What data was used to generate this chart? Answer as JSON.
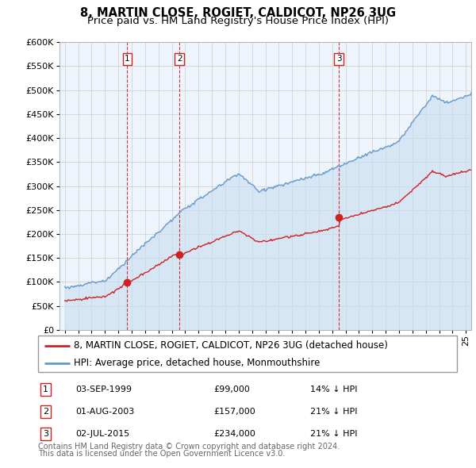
{
  "title": "8, MARTIN CLOSE, ROGIET, CALDICOT, NP26 3UG",
  "subtitle": "Price paid vs. HM Land Registry's House Price Index (HPI)",
  "legend_line1": "8, MARTIN CLOSE, ROGIET, CALDICOT, NP26 3UG (detached house)",
  "legend_line2": "HPI: Average price, detached house, Monmouthshire",
  "footer1": "Contains HM Land Registry data © Crown copyright and database right 2024.",
  "footer2": "This data is licensed under the Open Government Licence v3.0.",
  "purchases": [
    {
      "num": 1,
      "date": "03-SEP-1999",
      "price": 99000,
      "pct": "14%",
      "dir": "↓"
    },
    {
      "num": 2,
      "date": "01-AUG-2003",
      "price": 157000,
      "pct": "21%",
      "dir": "↓"
    },
    {
      "num": 3,
      "date": "02-JUL-2015",
      "price": 234000,
      "pct": "21%",
      "dir": "↓"
    }
  ],
  "purchase_dates_decimal": [
    1999.67,
    2003.58,
    2015.5
  ],
  "purchase_prices": [
    99000,
    157000,
    234000
  ],
  "hpi_color": "#6699cc",
  "price_color": "#cc2222",
  "vline_color": "#cc2222",
  "fill_color": "#ddeeff",
  "ylim": [
    0,
    600000
  ],
  "yticks": [
    0,
    50000,
    100000,
    150000,
    200000,
    250000,
    300000,
    350000,
    400000,
    450000,
    500000,
    550000,
    600000
  ],
  "xlim_start": 1994.6,
  "xlim_end": 2025.4,
  "background_color": "#ffffff",
  "grid_color": "#cccccc",
  "title_fontsize": 10.5,
  "subtitle_fontsize": 9.5,
  "tick_fontsize": 8,
  "legend_fontsize": 8.5,
  "footer_fontsize": 7
}
